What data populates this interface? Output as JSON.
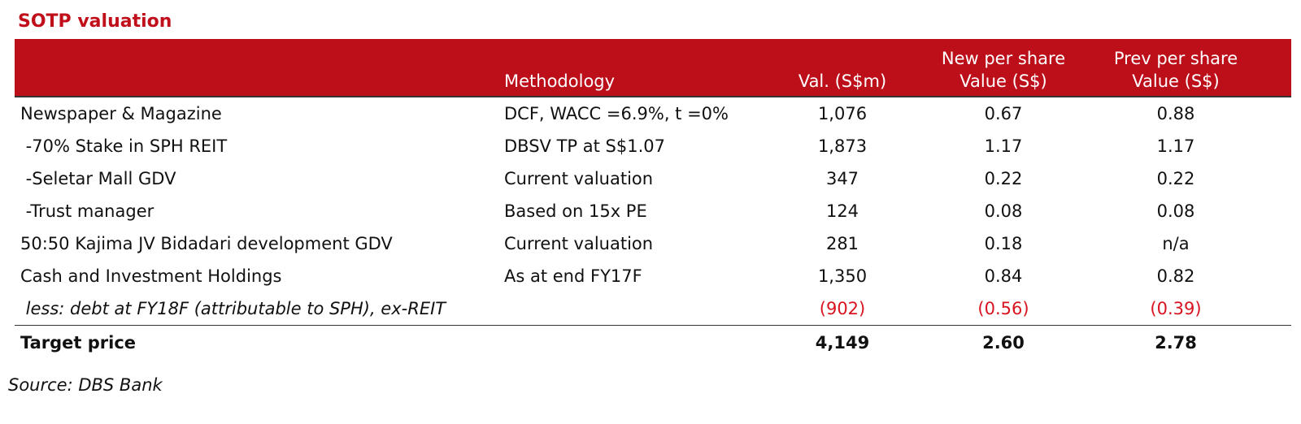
{
  "title": "SOTP valuation",
  "columns": {
    "methodology": "Methodology",
    "value": "Val. (S$m)",
    "new_per_share_l1": "New per share",
    "new_per_share_l2": "Value (S$)",
    "prev_per_share_l1": "Prev per share",
    "prev_per_share_l2": "Value (S$)"
  },
  "rows": [
    {
      "label": "Newspaper & Magazine",
      "method": "DCF, WACC =6.9%, t =0%",
      "value": "1,076",
      "new": "0.67",
      "prev": "0.88"
    },
    {
      "label": " -70% Stake in SPH REIT",
      "method": "DBSV TP at S$1.07",
      "value": "1,873",
      "new": "1.17",
      "prev": "1.17"
    },
    {
      "label": " -Seletar Mall GDV",
      "method": "Current valuation",
      "value": "347",
      "new": "0.22",
      "prev": "0.22"
    },
    {
      "label": " -Trust manager",
      "method": "Based on 15x PE",
      "value": "124",
      "new": "0.08",
      "prev": "0.08"
    },
    {
      "label": "50:50 Kajima JV Bidadari development GDV",
      "method": "Current valuation",
      "value": "281",
      "new": "0.18",
      "prev": "n/a"
    },
    {
      "label": "Cash and Investment Holdings",
      "method": "As at end FY17F",
      "value": "1,350",
      "new": "0.84",
      "prev": "0.82"
    },
    {
      "label": " less: debt at FY18F (attributable to SPH), ex-REIT",
      "method": "",
      "value": "(902)",
      "new": "(0.56)",
      "prev": "(0.39)"
    }
  ],
  "total": {
    "label": "Target price",
    "value": "4,149",
    "new": "2.60",
    "prev": "2.78"
  },
  "source": "Source: DBS Bank",
  "colors": {
    "header_bg": "#bc0f1a",
    "title": "#c0101b",
    "negative": "#d7141f"
  },
  "chart_data": {
    "type": "table",
    "title": "SOTP valuation",
    "columns": [
      "",
      "Methodology",
      "Val. (S$m)",
      "New per share Value (S$)",
      "Prev per share Value (S$)"
    ],
    "rows": [
      [
        "Newspaper & Magazine",
        "DCF, WACC =6.9%, t =0%",
        1076,
        0.67,
        0.88
      ],
      [
        " -70% Stake in SPH REIT",
        "DBSV TP at S$1.07",
        1873,
        1.17,
        1.17
      ],
      [
        " -Seletar Mall GDV",
        "Current valuation",
        347,
        0.22,
        0.22
      ],
      [
        " -Trust manager",
        "Based on 15x PE",
        124,
        0.08,
        0.08
      ],
      [
        "50:50 Kajima JV Bidadari development GDV",
        "Current valuation",
        281,
        0.18,
        "n/a"
      ],
      [
        "Cash and Investment Holdings",
        "As at end FY17F",
        1350,
        0.84,
        0.82
      ],
      [
        " less: debt at FY18F (attributable to SPH), ex-REIT",
        "",
        -902,
        -0.56,
        -0.39
      ],
      [
        "Target price",
        "",
        4149,
        2.6,
        2.78
      ]
    ],
    "source": "Source: DBS Bank"
  }
}
